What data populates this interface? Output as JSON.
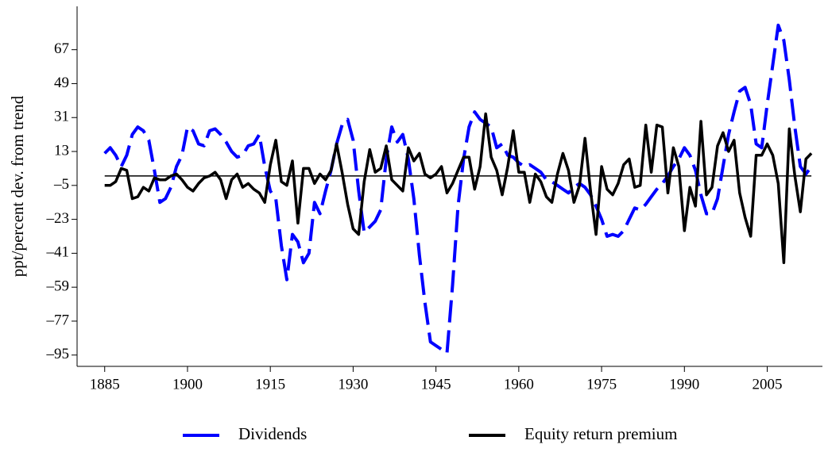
{
  "chart_data": {
    "type": "line",
    "y_label": "ppt/percent dev. from trend",
    "x": [
      1885,
      1886,
      1887,
      1888,
      1889,
      1890,
      1891,
      1892,
      1893,
      1894,
      1895,
      1896,
      1897,
      1898,
      1899,
      1900,
      1901,
      1902,
      1903,
      1904,
      1905,
      1906,
      1907,
      1908,
      1909,
      1910,
      1911,
      1912,
      1913,
      1914,
      1915,
      1916,
      1917,
      1918,
      1919,
      1920,
      1921,
      1922,
      1923,
      1924,
      1925,
      1926,
      1927,
      1928,
      1929,
      1930,
      1931,
      1932,
      1933,
      1934,
      1935,
      1936,
      1937,
      1938,
      1939,
      1940,
      1941,
      1942,
      1943,
      1944,
      1945,
      1946,
      1947,
      1948,
      1949,
      1950,
      1951,
      1952,
      1953,
      1954,
      1955,
      1956,
      1957,
      1958,
      1959,
      1960,
      1961,
      1962,
      1963,
      1964,
      1965,
      1966,
      1967,
      1968,
      1969,
      1970,
      1971,
      1972,
      1973,
      1974,
      1975,
      1976,
      1977,
      1978,
      1979,
      1980,
      1981,
      1982,
      1983,
      1984,
      1985,
      1986,
      1987,
      1988,
      1989,
      1990,
      1991,
      1992,
      1993,
      1994,
      1995,
      1996,
      1997,
      1998,
      1999,
      2000,
      2001,
      2002,
      2003,
      2004,
      2005,
      2006,
      2007,
      2008,
      2009,
      2010,
      2011,
      2012,
      2013
    ],
    "series": [
      {
        "name": "Dividends",
        "color": "#0000ff",
        "dashed": true,
        "values": [
          12,
          15,
          11,
          5,
          11,
          22,
          26,
          24,
          19,
          3,
          -14,
          -12,
          -6,
          5,
          11,
          26,
          24,
          17,
          16,
          24,
          25,
          22,
          18,
          13,
          10,
          11,
          16,
          17,
          22,
          5,
          -8,
          -12,
          -37,
          -55,
          -31,
          -35,
          -46,
          -41,
          -14,
          -20,
          -8,
          3,
          17,
          27,
          30,
          19,
          -8,
          -30,
          -27,
          -24,
          -18,
          9,
          26,
          18,
          22,
          9,
          -12,
          -42,
          -67,
          -88,
          -90,
          -92,
          -94,
          -58,
          -16,
          9,
          26,
          34,
          30,
          28,
          26,
          15,
          17,
          11,
          10,
          7,
          5,
          6,
          4,
          2,
          -2,
          -3,
          -5,
          -7,
          -9,
          -6,
          -4,
          -6,
          -10,
          -16,
          -23,
          -32,
          -31,
          -32,
          -29,
          -23,
          -17,
          -18,
          -15,
          -11,
          -7,
          -4,
          0,
          5,
          9,
          15,
          11,
          3,
          -10,
          -20,
          -20,
          -12,
          5,
          22,
          34,
          45,
          47,
          38,
          17,
          15,
          38,
          59,
          80,
          72,
          51,
          26,
          5,
          1,
          5
        ]
      },
      {
        "name": "Equity return premium",
        "color": "#000000",
        "dashed": false,
        "values": [
          -5,
          -5,
          -3,
          4,
          3,
          -12,
          -11,
          -6,
          -8,
          -1,
          -2,
          -2,
          0,
          1,
          -2,
          -6,
          -8,
          -4,
          -1,
          0,
          2,
          -2,
          -12,
          -2,
          1,
          -6,
          -4,
          -7,
          -9,
          -14,
          6,
          19,
          -3,
          -5,
          8,
          -25,
          4,
          4,
          -4,
          1,
          -2,
          3,
          17,
          2,
          -15,
          -28,
          -31,
          -3,
          14,
          2,
          4,
          16,
          -2,
          -5,
          -8,
          15,
          8,
          12,
          1,
          -1,
          1,
          5,
          -9,
          -4,
          3,
          10,
          10,
          -7,
          5,
          33,
          10,
          3,
          -10,
          5,
          24,
          2,
          2,
          -14,
          1,
          -3,
          -11,
          -14,
          1,
          12,
          3,
          -14,
          -5,
          20,
          -8,
          -31,
          5,
          -7,
          -10,
          -4,
          6,
          9,
          -6,
          -5,
          27,
          2,
          27,
          26,
          -9,
          15,
          5,
          -29,
          -6,
          -16,
          29,
          -10,
          -6,
          16,
          23,
          13,
          19,
          -9,
          -22,
          -32,
          11,
          11,
          17,
          11,
          -4,
          -46,
          25,
          0,
          -19,
          9,
          12
        ]
      }
    ],
    "xlim": [
      1880,
      2015
    ],
    "ylim": [
      -101,
      90
    ],
    "xticks": [
      1885,
      1900,
      1915,
      1930,
      1945,
      1960,
      1975,
      1990,
      2005
    ],
    "yticks": [
      {
        "value": -95,
        "label": "–95"
      },
      {
        "value": -77,
        "label": "–77"
      },
      {
        "value": -59,
        "label": "–59"
      },
      {
        "value": -41,
        "label": "–41"
      },
      {
        "value": -23,
        "label": "–23"
      },
      {
        "value": -5,
        "label": "–5"
      },
      13,
      31,
      49,
      67
    ],
    "legend": "bottom"
  }
}
